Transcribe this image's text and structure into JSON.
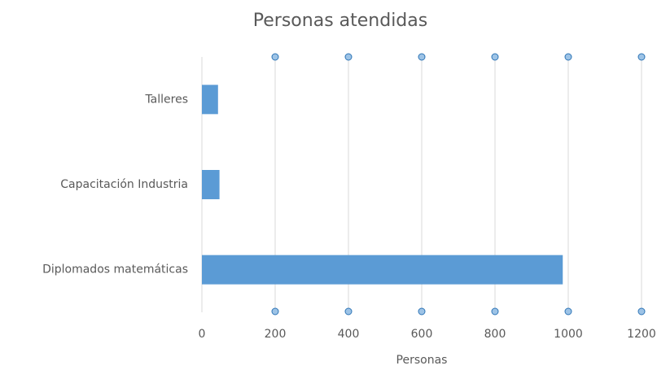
{
  "chart_data": {
    "type": "bar",
    "orientation": "horizontal",
    "title": "Personas atendidas",
    "xlabel": "Personas",
    "categories": [
      "Talleres",
      "Capacitación Industria",
      "Diplomados matemáticas"
    ],
    "values": [
      44,
      48,
      985
    ],
    "color": "#5b9bd5",
    "xlim": [
      0,
      1200
    ],
    "xticks": [
      0,
      200,
      400,
      600,
      800,
      1000,
      1200
    ],
    "grid": true
  }
}
